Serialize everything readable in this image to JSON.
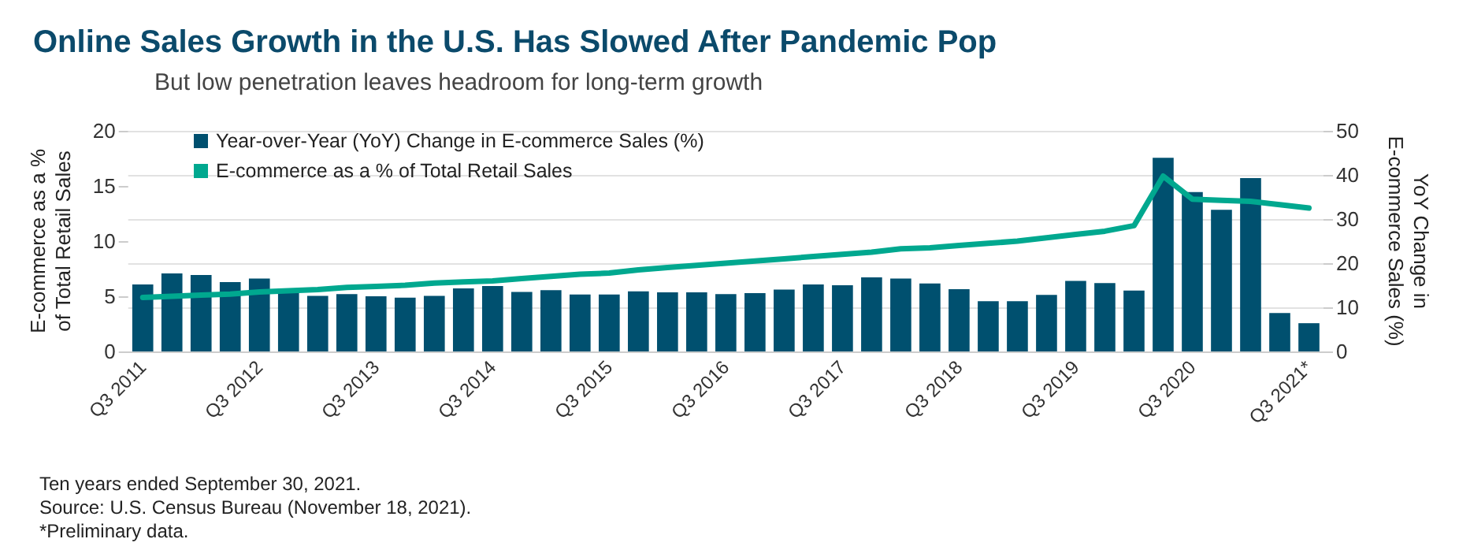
{
  "chart_data": {
    "type": "bar",
    "title": "Online Sales Growth in the U.S. Has Slowed After Pandemic Pop",
    "subtitle": "But low penetration leaves headroom for long-term growth",
    "ylabel": "E-commerce as a %\nof Total Retail Sales",
    "y2label": "YoY Change in\nE-commerce Sales (%)",
    "categories": [
      "Q3 2011",
      null,
      null,
      null,
      "Q3 2012",
      null,
      null,
      null,
      "Q3 2013",
      null,
      null,
      null,
      "Q3 2014",
      null,
      null,
      null,
      "Q3 2015",
      null,
      null,
      null,
      "Q3 2016",
      null,
      null,
      null,
      "Q3 2017",
      null,
      null,
      null,
      "Q3 2018",
      null,
      null,
      null,
      "Q3 2019",
      null,
      null,
      null,
      "Q3 2020",
      null,
      null,
      null,
      "Q3 2021*"
    ],
    "series": [
      {
        "name": "Year-over-Year (YoY) Change in E-commerce Sales (%)",
        "axis": "y2",
        "color": "#00506f",
        "values": [
          15.2,
          17.7,
          17.3,
          15.7,
          16.5,
          13.8,
          12.6,
          13.0,
          12.5,
          12.2,
          12.6,
          14.3,
          14.8,
          13.5,
          13.9,
          12.9,
          12.9,
          13.6,
          13.4,
          13.4,
          13.0,
          13.2,
          14.0,
          15.2,
          15.0,
          16.8,
          16.5,
          15.4,
          14.1,
          11.4,
          11.4,
          12.8,
          16.0,
          15.5,
          13.8,
          43.9,
          36.1,
          32.1,
          39.3,
          8.7,
          6.4
        ]
      },
      {
        "name": "E-commerce as a % of Total Retail Sales",
        "type": "line",
        "color": "#00a88f",
        "values": [
          4.9,
          5.0,
          5.1,
          5.2,
          5.4,
          5.5,
          5.6,
          5.8,
          5.9,
          6.0,
          6.2,
          6.3,
          6.4,
          6.6,
          6.8,
          7.0,
          7.1,
          7.4,
          7.6,
          7.8,
          8.0,
          8.2,
          8.4,
          8.6,
          8.8,
          9.0,
          9.3,
          9.4,
          9.6,
          9.8,
          10.0,
          10.3,
          10.6,
          10.9,
          11.4,
          15.9,
          13.8,
          13.7,
          13.6,
          13.3,
          13.0
        ]
      }
    ],
    "ylim": [
      0,
      20
    ],
    "yticks": [
      0,
      5,
      10,
      15,
      20
    ],
    "y2lim": [
      0,
      50
    ],
    "y2ticks": [
      0,
      10,
      20,
      30,
      40,
      50
    ],
    "grid": "y",
    "legend": "top left",
    "marker": "none",
    "line_style": "solid",
    "annotations": [
      "Ten years ended September 30, 2021.",
      "Source: U.S. Census Bureau (November 18, 2021).",
      "*Preliminary data."
    ]
  }
}
